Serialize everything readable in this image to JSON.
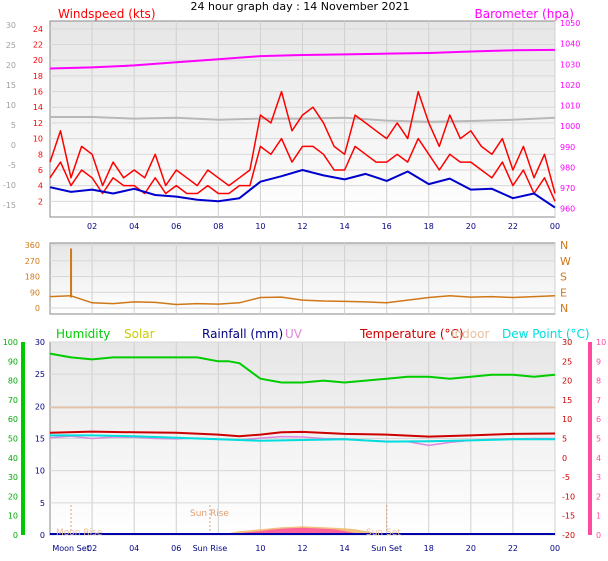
{
  "title": "24 hour graph day : 14 November 2021",
  "colors": {
    "wind": "#ff0000",
    "gust": "#ff0000",
    "avg": "#0000cc",
    "baro": "#ff00ff",
    "gray": "#b8b8b8",
    "dir": "#d07818",
    "humidity": "#00cc00",
    "solar": "#cccc00",
    "rain": "#000080",
    "uv": "#dd88dd",
    "temp": "#cc0000",
    "indoor": "#e8c0a0",
    "dew": "#00dddd",
    "rainbar": "#00c800",
    "uvbar": "#ff4aa0",
    "solarfill": "#f0b060",
    "minuteFill": "#e8e8e8",
    "hourText": "#000080"
  },
  "chart_data": [
    {
      "type": "line",
      "name": "wind-chart",
      "x_tick_labels": [
        "02",
        "04",
        "06",
        "08",
        "10",
        "12",
        "14",
        "16",
        "18",
        "20",
        "22",
        "00"
      ],
      "left_axis_label": "Windspeed (kts)",
      "left_axis_ticks": [
        "2",
        "4",
        "6",
        "8",
        "10",
        "12",
        "14",
        "16",
        "18",
        "20",
        "22",
        "24"
      ],
      "left_axis_range": [
        0,
        25
      ],
      "outer_left_ticks": [
        "-15",
        "-10",
        "-5",
        "0",
        "5",
        "10",
        "15",
        "20",
        "25",
        "30"
      ],
      "outer_left_range": [
        -18,
        31
      ],
      "right_axis_label": "Barometer (hpa)",
      "right_axis_ticks": [
        "960",
        "970",
        "980",
        "990",
        "1000",
        "1010",
        "1020",
        "1030",
        "1040",
        "1050"
      ],
      "right_axis_range": [
        956,
        1051
      ],
      "series": [
        {
          "key": "baro",
          "axis": "right",
          "x": [
            0,
            2,
            4,
            6,
            8,
            10,
            12,
            14,
            16,
            18,
            20,
            22,
            24
          ],
          "y": [
            1028,
            1028.5,
            1029.5,
            1031,
            1032.5,
            1034,
            1034.5,
            1034.8,
            1035.2,
            1035.5,
            1036.2,
            1036.8,
            1037
          ]
        },
        {
          "key": "gray",
          "axis": "outer",
          "x": [
            0,
            2,
            4,
            6,
            8,
            10,
            12,
            14,
            16,
            18,
            20,
            22,
            24
          ],
          "y": [
            7,
            7,
            6.6,
            6.8,
            6.3,
            6.6,
            6.6,
            6.8,
            6.1,
            5.8,
            6.0,
            6.3,
            6.8
          ]
        },
        {
          "key": "gust",
          "axis": "left",
          "x": [
            0,
            0.5,
            1,
            1.5,
            2,
            2.5,
            3,
            3.5,
            4,
            4.5,
            5,
            5.5,
            6,
            6.5,
            7,
            7.5,
            8,
            8.5,
            9,
            9.5,
            10,
            10.5,
            11,
            11.5,
            12,
            12.5,
            13,
            13.5,
            14,
            14.5,
            15,
            15.5,
            16,
            16.5,
            17,
            17.5,
            18,
            18.5,
            19,
            19.5,
            20,
            20.5,
            21,
            21.5,
            22,
            22.5,
            23,
            23.5,
            24
          ],
          "y": [
            7,
            11,
            5,
            9,
            8,
            4,
            7,
            5,
            6,
            5,
            8,
            4,
            6,
            5,
            4,
            6,
            5,
            4,
            5,
            6,
            13,
            12,
            16,
            11,
            13,
            14,
            12,
            9,
            8,
            13,
            12,
            11,
            10,
            12,
            10,
            16,
            12,
            9,
            13,
            10,
            11,
            9,
            8,
            10,
            6,
            9,
            5,
            8,
            3
          ]
        },
        {
          "key": "wind",
          "axis": "left",
          "x": [
            0,
            0.5,
            1,
            1.5,
            2,
            2.5,
            3,
            3.5,
            4,
            4.5,
            5,
            5.5,
            6,
            6.5,
            7,
            7.5,
            8,
            8.5,
            9,
            9.5,
            10,
            10.5,
            11,
            11.5,
            12,
            12.5,
            13,
            13.5,
            14,
            14.5,
            15,
            15.5,
            16,
            16.5,
            17,
            17.5,
            18,
            18.5,
            19,
            19.5,
            20,
            20.5,
            21,
            21.5,
            22,
            22.5,
            23,
            23.5,
            24
          ],
          "y": [
            5,
            7,
            4,
            6,
            5,
            3,
            5,
            4,
            4,
            3,
            5,
            3,
            4,
            3,
            3,
            4,
            3,
            3,
            4,
            4,
            9,
            8,
            10,
            7,
            9,
            9,
            8,
            6,
            6,
            9,
            8,
            7,
            7,
            8,
            7,
            10,
            8,
            6,
            8,
            7,
            7,
            6,
            5,
            7,
            4,
            6,
            3,
            5,
            2
          ]
        },
        {
          "key": "avg",
          "axis": "left",
          "x": [
            0,
            1,
            2,
            3,
            4,
            5,
            6,
            7,
            8,
            9,
            10,
            11,
            12,
            13,
            14,
            15,
            16,
            17,
            18,
            19,
            20,
            21,
            22,
            23,
            24
          ],
          "y": [
            3.8,
            3.2,
            3.5,
            3.0,
            3.6,
            2.8,
            2.6,
            2.2,
            2.0,
            2.4,
            4.5,
            5.2,
            6.0,
            5.3,
            4.8,
            5.5,
            4.6,
            5.8,
            4.2,
            4.9,
            3.5,
            3.6,
            2.4,
            3.0,
            1.2
          ]
        }
      ]
    },
    {
      "type": "scatter",
      "name": "wind-direction-chart",
      "left_axis_ticks": [
        "0",
        "90",
        "180",
        "270",
        "360"
      ],
      "left_axis_range": [
        0,
        360
      ],
      "right_axis_ticks": [
        "N",
        "E",
        "S",
        "W",
        "N"
      ],
      "spike": {
        "x": 1.0,
        "y": 340
      },
      "series": [
        {
          "key": "dir",
          "x": [
            0,
            1,
            2,
            3,
            4,
            5,
            6,
            7,
            8,
            9,
            10,
            11,
            12,
            13,
            14,
            15,
            16,
            17,
            18,
            19,
            20,
            21,
            22,
            23,
            24
          ],
          "y": [
            65,
            70,
            30,
            25,
            35,
            32,
            20,
            25,
            22,
            30,
            60,
            62,
            45,
            40,
            38,
            35,
            30,
            45,
            60,
            70,
            62,
            65,
            60,
            65,
            70
          ]
        }
      ]
    },
    {
      "type": "line",
      "name": "temperature-humidity-chart",
      "legend": [
        "Humidity",
        "Solar",
        "Rainfall (mm)",
        "UV",
        "Temperature (°C)",
        "Indoor",
        "Dew Point (°C)"
      ],
      "x_tick_labels": [
        "02",
        "04",
        "06",
        "10",
        "12",
        "14",
        "18",
        "20",
        "22",
        "00"
      ],
      "x_tick_hours": [
        2,
        4,
        6,
        10,
        12,
        14,
        18,
        20,
        22,
        24
      ],
      "almanac_labels": [
        "Moon Set",
        "Sun Rise",
        "Sun Set"
      ],
      "almanac_hours": [
        1.0,
        7.6,
        16.0
      ],
      "chart_annotations": [
        "Sun Rise",
        "Moon Rise",
        "Sun Set"
      ],
      "humidity_axis_ticks": [
        "0",
        "10",
        "20",
        "30",
        "40",
        "50",
        "60",
        "70",
        "80",
        "90",
        "100"
      ],
      "humidity_axis_range": [
        0,
        100
      ],
      "left_axis_ticks": [
        "0",
        "5",
        "10",
        "15",
        "20",
        "25",
        "30"
      ],
      "left_axis_range": [
        0,
        30
      ],
      "right_axis_ticks": [
        "-20",
        "-15",
        "-10",
        "-5",
        "0",
        "5",
        "10",
        "15",
        "20",
        "25",
        "30"
      ],
      "right_axis_range": [
        -20,
        30
      ],
      "far_right_ticks": [
        "0",
        "1",
        "2",
        "3",
        "4",
        "5",
        "6",
        "7",
        "8",
        "9",
        "10"
      ],
      "far_right_range": [
        0,
        10
      ],
      "series": [
        {
          "key": "humidity",
          "axis": "humidity",
          "x": [
            0,
            1,
            2,
            3,
            4,
            5,
            6,
            7,
            8,
            8.5,
            9,
            10,
            11,
            12,
            13,
            14,
            15,
            16,
            17,
            18,
            19,
            20,
            21,
            22,
            23,
            24
          ],
          "y": [
            94,
            92,
            91,
            92,
            92,
            92,
            92,
            92,
            90,
            90,
            89,
            81,
            79,
            79,
            80,
            79,
            80,
            81,
            82,
            82,
            81,
            82,
            83,
            83,
            82,
            83
          ]
        },
        {
          "key": "indoor",
          "axis": "right",
          "x": [
            0,
            24
          ],
          "y": [
            13,
            13
          ]
        },
        {
          "key": "temp",
          "axis": "right",
          "x": [
            0,
            2,
            4,
            6,
            8,
            9,
            10,
            11,
            12,
            14,
            16,
            18,
            20,
            22,
            24
          ],
          "y": [
            6.5,
            6.8,
            6.6,
            6.5,
            6.0,
            5.6,
            6.0,
            6.6,
            6.7,
            6.2,
            6.0,
            5.5,
            5.8,
            6.2,
            6.3
          ]
        },
        {
          "key": "uv",
          "axis": "right",
          "x": [
            0,
            1,
            2,
            3,
            4,
            5,
            6,
            7,
            8,
            9,
            10,
            11,
            12,
            13,
            14,
            15,
            16,
            17,
            18,
            19,
            20,
            21,
            22,
            23,
            24
          ],
          "y": [
            5.2,
            5.6,
            5.0,
            5.4,
            5.3,
            5.0,
            4.9,
            5.1,
            4.8,
            4.6,
            5.1,
            5.5,
            5.4,
            5.0,
            4.9,
            4.5,
            4.3,
            4.2,
            3.2,
            4.0,
            4.5,
            4.8,
            4.9,
            5.0,
            5.0
          ]
        },
        {
          "key": "dew",
          "axis": "right",
          "x": [
            0,
            2,
            4,
            6,
            8,
            9,
            10,
            12,
            14,
            16,
            18,
            20,
            22,
            24
          ],
          "y": [
            5.8,
            5.8,
            5.6,
            5.2,
            4.8,
            4.6,
            4.4,
            4.6,
            4.8,
            4.2,
            4.3,
            4.5,
            4.8,
            4.8
          ]
        },
        {
          "key": "solarfill",
          "axis": "far_right",
          "x": [
            8.0,
            8.5,
            9,
            9.5,
            10,
            10.5,
            11,
            11.5,
            12,
            12.5,
            13,
            13.5,
            14,
            14.5,
            15,
            15.5,
            16
          ],
          "y": [
            0,
            0.1,
            0.2,
            0.25,
            0.3,
            0.35,
            0.4,
            0.42,
            0.45,
            0.43,
            0.4,
            0.38,
            0.35,
            0.3,
            0.2,
            0.1,
            0
          ]
        },
        {
          "key": "uvbar",
          "axis": "far_right",
          "x": [
            8.5,
            9,
            9.5,
            10,
            10.5,
            11,
            11.5,
            12,
            12.5,
            13,
            13.5,
            14,
            14.5,
            15
          ],
          "y": [
            0.05,
            0.1,
            0.15,
            0.2,
            0.28,
            0.32,
            0.36,
            0.38,
            0.35,
            0.32,
            0.3,
            0.2,
            0.1,
            0.05
          ]
        }
      ]
    }
  ]
}
